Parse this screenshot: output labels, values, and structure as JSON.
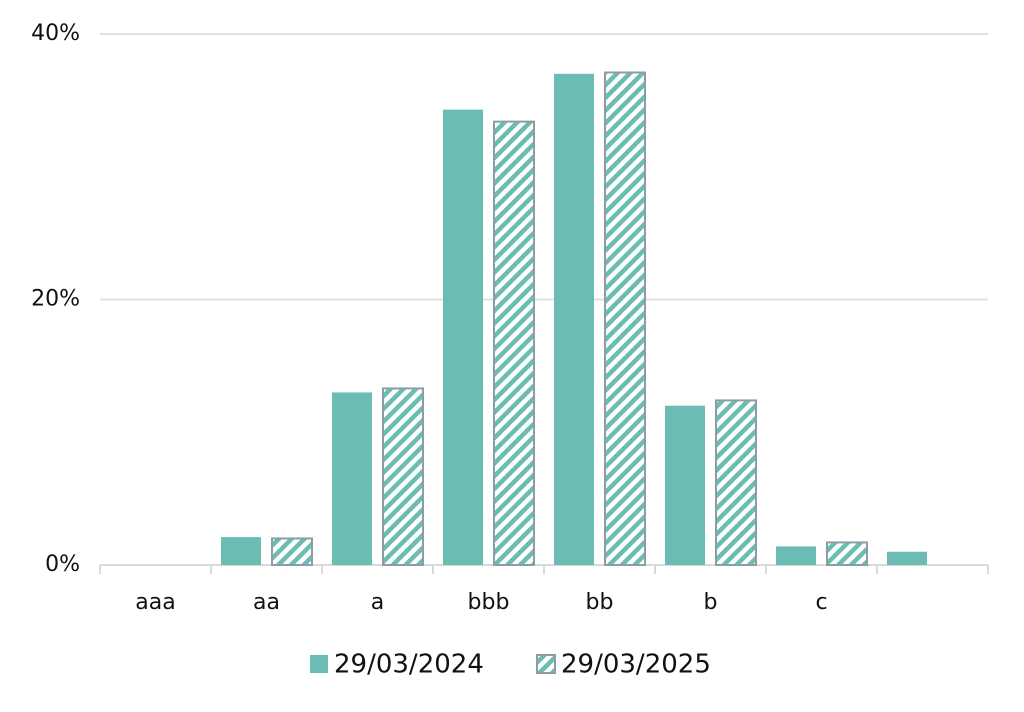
{
  "chart_data": {
    "type": "bar",
    "categories": [
      "aaa",
      "aa",
      "a",
      "bbb",
      "bb",
      "b",
      "c",
      null
    ],
    "series": [
      {
        "name": "29/03/2024",
        "color": "#6bbcb3",
        "values": [
          0,
          2.1,
          13.0,
          34.3,
          37.0,
          12.0,
          1.4,
          1.0
        ]
      },
      {
        "name": "29/03/2025",
        "color": "#6bbcb3",
        "edgecolor": "#8c9ea3",
        "hatch": true,
        "values": [
          0,
          2.0,
          13.3,
          33.4,
          37.1,
          12.4,
          1.7,
          null
        ]
      }
    ],
    "ylim": [
      0,
      40
    ],
    "yticks": [
      {
        "value": 0,
        "label": "0%"
      },
      {
        "value": 20,
        "label": "20%"
      },
      {
        "value": 40,
        "label": "40%"
      }
    ],
    "grid": true
  }
}
